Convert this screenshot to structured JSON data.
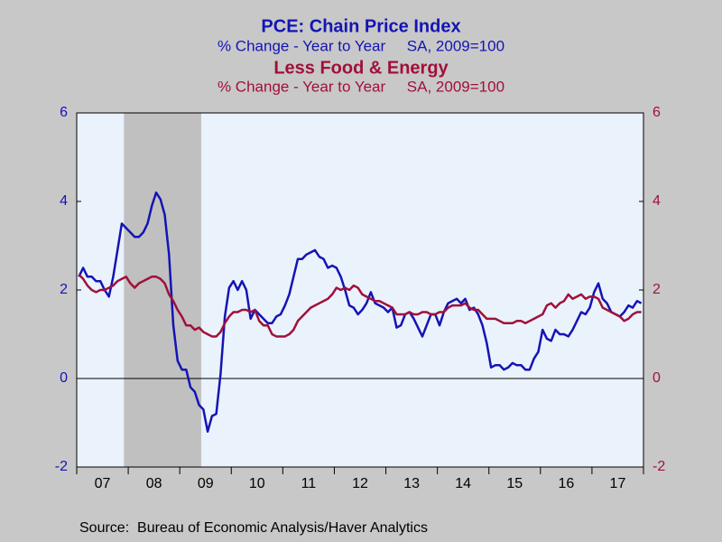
{
  "chart_data": {
    "type": "line",
    "source": "Source:  Bureau of Economic Analysis/Haver Analytics",
    "categories": [
      null,
      null,
      null,
      null,
      null,
      null,
      "07",
      null,
      null,
      null,
      null,
      null,
      null,
      null,
      null,
      null,
      null,
      null,
      "08",
      null,
      null,
      null,
      null,
      null,
      null,
      null,
      null,
      null,
      null,
      null,
      "09",
      null,
      null,
      null,
      null,
      null,
      null,
      null,
      null,
      null,
      null,
      null,
      "10",
      null,
      null,
      null,
      null,
      null,
      null,
      null,
      null,
      null,
      null,
      null,
      "11",
      null,
      null,
      null,
      null,
      null,
      null,
      null,
      null,
      null,
      null,
      null,
      "12",
      null,
      null,
      null,
      null,
      null,
      null,
      null,
      null,
      null,
      null,
      null,
      "13",
      null,
      null,
      null,
      null,
      null,
      null,
      null,
      null,
      null,
      null,
      null,
      "14",
      null,
      null,
      null,
      null,
      null,
      null,
      null,
      null,
      null,
      null,
      null,
      "15",
      null,
      null,
      null,
      null,
      null,
      null,
      null,
      null,
      null,
      null,
      null,
      "16",
      null,
      null,
      null,
      null,
      null,
      null,
      null,
      null,
      null,
      null,
      null,
      "17",
      null,
      null,
      null,
      null,
      null
    ],
    "shaded_ranges": [
      [
        11,
        29
      ]
    ],
    "reference_line": 0,
    "ylim": [
      -2,
      6
    ],
    "yticks": [
      -2,
      0,
      2,
      4,
      6
    ],
    "y2lim": [
      -2,
      6
    ],
    "y2ticks": [
      -2,
      0,
      2,
      4,
      6
    ],
    "series": [
      {
        "name": "PCE: Chain Price Index",
        "subtitle": "% Change - Year to Year     SA, 2009=100",
        "color": "#1414b4",
        "axis": "y",
        "values": [
          2.3,
          2.5,
          2.3,
          2.3,
          2.2,
          2.2,
          2.0,
          1.85,
          2.3,
          2.9,
          3.5,
          3.4,
          3.3,
          3.2,
          3.2,
          3.3,
          3.5,
          3.9,
          4.2,
          4.05,
          3.7,
          2.8,
          1.2,
          0.4,
          0.2,
          0.2,
          -0.2,
          -0.3,
          -0.6,
          -0.7,
          -1.2,
          -0.85,
          -0.8,
          0.1,
          1.4,
          2.05,
          2.2,
          2.0,
          2.2,
          2.0,
          1.35,
          1.55,
          1.45,
          1.35,
          1.25,
          1.25,
          1.4,
          1.45,
          1.65,
          1.9,
          2.3,
          2.7,
          2.7,
          2.8,
          2.85,
          2.9,
          2.75,
          2.7,
          2.5,
          2.55,
          2.5,
          2.3,
          2.0,
          1.65,
          1.6,
          1.45,
          1.55,
          1.7,
          1.95,
          1.7,
          1.65,
          1.6,
          1.5,
          1.6,
          1.15,
          1.2,
          1.45,
          1.5,
          1.35,
          1.15,
          0.95,
          1.2,
          1.45,
          1.45,
          1.2,
          1.5,
          1.7,
          1.75,
          1.8,
          1.7,
          1.8,
          1.55,
          1.6,
          1.45,
          1.2,
          0.8,
          0.25,
          0.3,
          0.3,
          0.2,
          0.25,
          0.35,
          0.3,
          0.3,
          0.2,
          0.2,
          0.45,
          0.6,
          1.1,
          0.9,
          0.85,
          1.1,
          1.0,
          1.0,
          0.95,
          1.1,
          1.3,
          1.5,
          1.45,
          1.6,
          1.95,
          2.15,
          1.8,
          1.7,
          1.5,
          1.45,
          1.4,
          1.5,
          1.65,
          1.6,
          1.75,
          1.7
        ]
      },
      {
        "name": "Less Food & Energy",
        "subtitle": "% Change - Year to Year     SA, 2009=100",
        "color": "#a0103a",
        "axis": "y2",
        "values": [
          2.35,
          2.25,
          2.1,
          2.0,
          1.95,
          2.0,
          2.0,
          2.05,
          2.1,
          2.2,
          2.25,
          2.3,
          2.15,
          2.05,
          2.15,
          2.2,
          2.25,
          2.3,
          2.3,
          2.25,
          2.15,
          1.9,
          1.75,
          1.55,
          1.4,
          1.2,
          1.2,
          1.1,
          1.15,
          1.05,
          1.0,
          0.95,
          0.95,
          1.05,
          1.25,
          1.4,
          1.5,
          1.5,
          1.55,
          1.55,
          1.5,
          1.55,
          1.3,
          1.2,
          1.2,
          1.0,
          0.95,
          0.95,
          0.95,
          1.0,
          1.1,
          1.3,
          1.4,
          1.5,
          1.6,
          1.65,
          1.7,
          1.75,
          1.8,
          1.9,
          2.05,
          2.0,
          2.05,
          2.0,
          2.1,
          2.05,
          1.9,
          1.85,
          1.8,
          1.75,
          1.75,
          1.7,
          1.65,
          1.6,
          1.45,
          1.45,
          1.45,
          1.5,
          1.45,
          1.45,
          1.5,
          1.5,
          1.45,
          1.45,
          1.5,
          1.5,
          1.6,
          1.65,
          1.65,
          1.65,
          1.7,
          1.6,
          1.55,
          1.55,
          1.45,
          1.35,
          1.35,
          1.35,
          1.3,
          1.25,
          1.25,
          1.25,
          1.3,
          1.3,
          1.25,
          1.3,
          1.35,
          1.4,
          1.45,
          1.65,
          1.7,
          1.6,
          1.7,
          1.75,
          1.9,
          1.8,
          1.85,
          1.9,
          1.8,
          1.85,
          1.85,
          1.8,
          1.6,
          1.55,
          1.5,
          1.45,
          1.4,
          1.3,
          1.35,
          1.45,
          1.5,
          1.5
        ]
      }
    ]
  }
}
